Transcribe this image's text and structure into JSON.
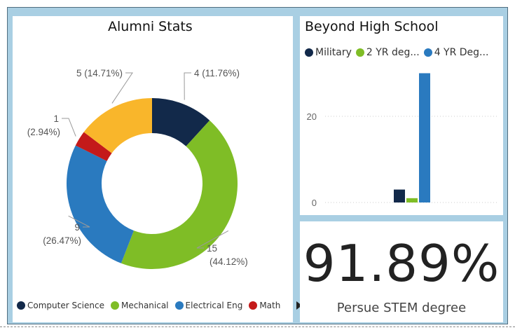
{
  "alumni": {
    "title": "Alumni Stats",
    "legend": [
      {
        "name": "Computer Science",
        "color": "#12294a"
      },
      {
        "name": "Mechanical",
        "color": "#7fbd26"
      },
      {
        "name": "Electrical Eng",
        "color": "#2a7abf"
      },
      {
        "name": "Math",
        "color": "#c41a1a"
      }
    ]
  },
  "beyond": {
    "title": "Beyond High School",
    "legend": [
      {
        "name": "Military",
        "color": "#12294a"
      },
      {
        "name": "2 YR deg...",
        "color": "#7fbd26"
      },
      {
        "name": "4 YR Deg...",
        "color": "#2a7abf"
      }
    ]
  },
  "card": {
    "value": "91.89%",
    "label": "Persue STEM degree"
  },
  "chart_data": [
    {
      "type": "pie",
      "title": "Alumni Stats",
      "categories": [
        "Computer Science",
        "Mechanical",
        "Electrical Eng",
        "Math",
        ""
      ],
      "values": [
        4,
        15,
        9,
        1,
        5
      ],
      "labels": [
        {
          "value": "4",
          "pct": "(11.76%)"
        },
        {
          "value": "15",
          "pct": "(44.12%)"
        },
        {
          "value": "9",
          "pct": "(26.47%)"
        },
        {
          "value": "1",
          "pct": "(2.94%)"
        },
        {
          "value": "5",
          "pct": "(14.71%)"
        }
      ],
      "colors": [
        "#12294a",
        "#7fbd26",
        "#2a7abf",
        "#c41a1a",
        "#f9b62b"
      ],
      "donut": true,
      "legend_position": "bottom"
    },
    {
      "type": "bar",
      "title": "Beyond High School",
      "series": [
        {
          "name": "Military",
          "values": [
            3
          ]
        },
        {
          "name": "2 YR deg...",
          "values": [
            1
          ]
        },
        {
          "name": "4 YR Deg...",
          "values": [
            30
          ]
        }
      ],
      "colors": [
        "#12294a",
        "#7fbd26",
        "#2a7abf"
      ],
      "y_ticks": [
        0,
        20
      ],
      "ylim": [
        0,
        30
      ],
      "grid": true,
      "legend_position": "top"
    }
  ]
}
